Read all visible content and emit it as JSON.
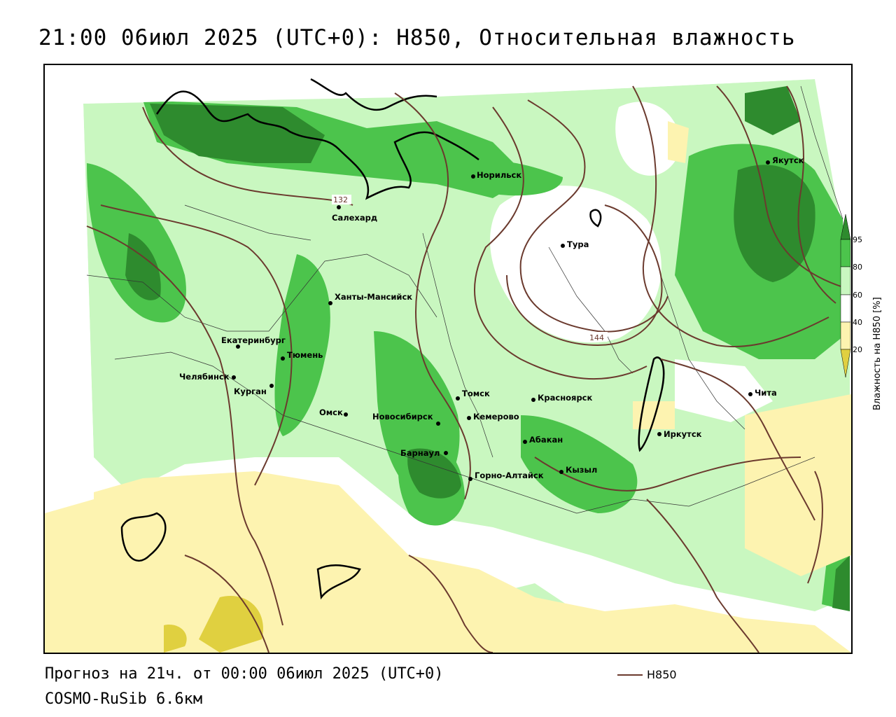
{
  "title": "21:00 06июл 2025 (UTC+0): H850, Относительная влажность",
  "footer": {
    "forecast": "Прогноз на 21ч. от 00:00 06июл 2025 (UTC+0)",
    "model": "COSMO-RuSib 6.6км"
  },
  "line_legend": {
    "label": "H850",
    "color": "#6b3a2e"
  },
  "colorbar": {
    "title": "Влажность на H850 [%]",
    "ticks": [
      "95",
      "80",
      "60",
      "40",
      "20"
    ],
    "colors": [
      "#2e8b2e",
      "#4cc44c",
      "#c9f7c0",
      "#ffffff",
      "#fdf3b0",
      "#e0d040"
    ]
  },
  "isolines": [
    {
      "label": "132"
    },
    {
      "label": "144"
    }
  ],
  "cities": [
    {
      "name": "Норильск"
    },
    {
      "name": "Салехард"
    },
    {
      "name": "Тура"
    },
    {
      "name": "Якутск"
    },
    {
      "name": "Ханты-Мансийск"
    },
    {
      "name": "Екатеринбург"
    },
    {
      "name": "Тюмень"
    },
    {
      "name": "Челябинск"
    },
    {
      "name": "Курган"
    },
    {
      "name": "Омск"
    },
    {
      "name": "Новосибирск"
    },
    {
      "name": "Томск"
    },
    {
      "name": "Кемерово"
    },
    {
      "name": "Красноярск"
    },
    {
      "name": "Барнаул"
    },
    {
      "name": "Абакан"
    },
    {
      "name": "Горно-Алтайск"
    },
    {
      "name": "Кызыл"
    },
    {
      "name": "Иркутск"
    },
    {
      "name": "Чита"
    }
  ]
}
